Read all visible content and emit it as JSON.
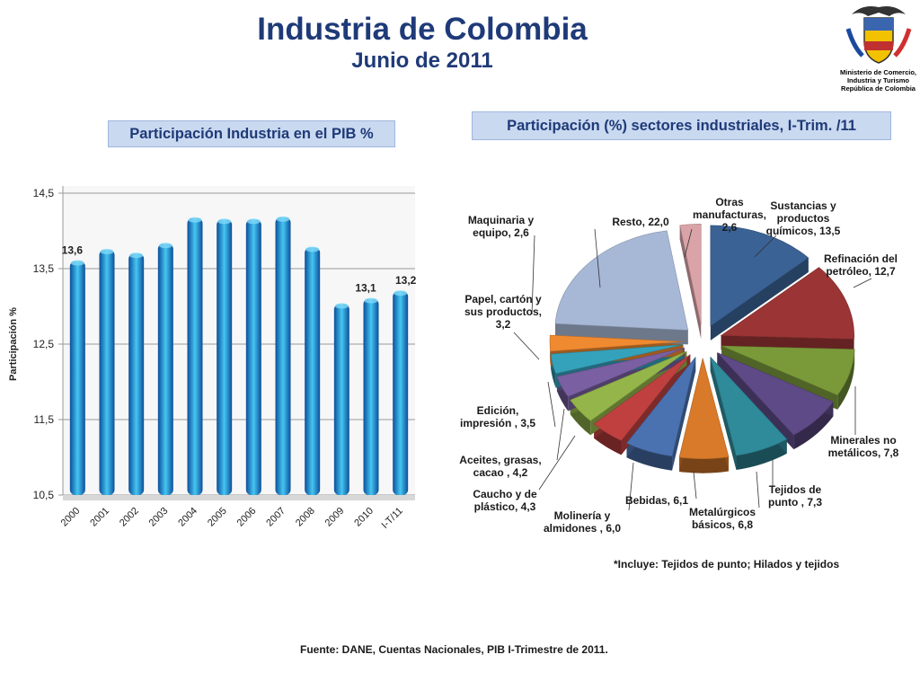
{
  "title": "Industria de Colombia",
  "subtitle": "Junio de 2011",
  "ministry": [
    "Ministerio de Comercio,",
    "Industria y Turismo",
    "República de Colombia"
  ],
  "bar_box_title": "Participación Industria en el PIB %",
  "pie_box_title": "Participación (%) sectores industriales, I-Trim. /11",
  "note": "*Incluye: Tejidos de punto; Hilados y tejidos",
  "source": "Fuente: DANE, Cuentas Nacionales, PIB  I-Trimestre de 2011.",
  "colors": {
    "title": "#1f3a78",
    "box_bg": "#c9d9f0",
    "bar": "#1e88d8"
  },
  "chart_data": [
    {
      "type": "bar",
      "title": "Participación Industria en el PIB %",
      "ylabel": "Participación %",
      "categories": [
        "2000",
        "2001",
        "2002",
        "2003",
        "2004",
        "2005",
        "2006",
        "2007",
        "2008",
        "2009",
        "2010",
        "I-T/11"
      ],
      "values": [
        13.6,
        13.75,
        13.7,
        13.83,
        14.17,
        14.15,
        14.15,
        14.18,
        13.78,
        13.03,
        13.1,
        13.2
      ],
      "data_labels": [
        "13,6",
        "",
        "",
        "",
        "",
        "",
        "",
        "",
        "",
        "",
        "13,1",
        "13,2"
      ],
      "yticks": [
        "10,5",
        "11,5",
        "12,5",
        "13,5",
        "14,5"
      ],
      "ytick_values": [
        10.5,
        11.5,
        12.5,
        13.5,
        14.5
      ],
      "ylim": [
        10.5,
        14.5
      ],
      "grid": true
    },
    {
      "type": "pie",
      "title": "Participación (%) sectores industriales, I-Trim. /11",
      "slices": [
        {
          "label": "Sustancias y productos químicos, 13,5",
          "value": 13.5,
          "color": "#3a6295"
        },
        {
          "label": "Refinación del petróleo, 12,7",
          "value": 12.7,
          "color": "#9b3535"
        },
        {
          "label": "Minerales no metálicos, 7,8",
          "value": 7.8,
          "color": "#7a9a3a"
        },
        {
          "label": "Tejidos de punto , 7,3",
          "value": 7.3,
          "color": "#5e4a86"
        },
        {
          "label": "Metalúrgicos básicos, 6,8",
          "value": 6.8,
          "color": "#2f8a9a"
        },
        {
          "label": "Bebidas, 6,1",
          "value": 6.1,
          "color": "#d87a2a"
        },
        {
          "label": "Molinería y almidones , 6,0",
          "value": 6.0,
          "color": "#4a72b0"
        },
        {
          "label": "Caucho y de plástico, 4,3",
          "value": 4.3,
          "color": "#c04040"
        },
        {
          "label": "Aceites, grasas, cacao , 4,2",
          "value": 4.2,
          "color": "#94b54a"
        },
        {
          "label": "Edición, impresión , 3,5",
          "value": 3.5,
          "color": "#7a5fa3"
        },
        {
          "label": "Papel, cartón y sus productos, 3,2",
          "value": 3.2,
          "color": "#35a2bb"
        },
        {
          "label": "Maquinaria y equipo, 2,6",
          "value": 2.6,
          "color": "#f08a30"
        },
        {
          "label": "Resto, 22,0",
          "value": 22.0,
          "color": "#a7b8d6"
        },
        {
          "label": "Otras manufacturas, 2,6",
          "value": 2.6,
          "color": "#d9a3a8"
        }
      ]
    }
  ]
}
